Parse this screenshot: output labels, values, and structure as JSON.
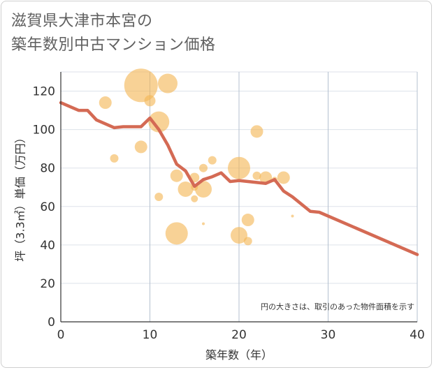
{
  "title_line1": "滋賀県大津市本宮の",
  "title_line2": "築年数別中古マンション価格",
  "chart_data": {
    "type": "scatter",
    "xlabel": "築年数（年）",
    "ylabel": "坪（3.3㎡）単価（万円）",
    "xlim": [
      0,
      40
    ],
    "ylim": [
      0,
      130
    ],
    "xticks": [
      0,
      10,
      20,
      30,
      40
    ],
    "yticks": [
      0,
      20,
      40,
      60,
      80,
      100,
      120
    ],
    "grid": true,
    "note": "円の大きさは、取引のあった物件面積を示す",
    "bubble_color": "#f3b755",
    "line_color": "#d46a54",
    "bubbles": [
      {
        "x": 9,
        "y": 123,
        "size": 24
      },
      {
        "x": 12,
        "y": 124,
        "size": 14
      },
      {
        "x": 5,
        "y": 114,
        "size": 9
      },
      {
        "x": 10,
        "y": 115,
        "size": 8
      },
      {
        "x": 11,
        "y": 104,
        "size": 15
      },
      {
        "x": 22,
        "y": 99,
        "size": 9
      },
      {
        "x": 9,
        "y": 91,
        "size": 9
      },
      {
        "x": 6,
        "y": 85,
        "size": 6
      },
      {
        "x": 17,
        "y": 84,
        "size": 6
      },
      {
        "x": 20,
        "y": 80,
        "size": 16
      },
      {
        "x": 16,
        "y": 80,
        "size": 6
      },
      {
        "x": 13,
        "y": 76,
        "size": 9
      },
      {
        "x": 22,
        "y": 76,
        "size": 6
      },
      {
        "x": 23,
        "y": 75,
        "size": 9
      },
      {
        "x": 25,
        "y": 75,
        "size": 9
      },
      {
        "x": 24,
        "y": 74,
        "size": 4
      },
      {
        "x": 15,
        "y": 75,
        "size": 7
      },
      {
        "x": 14,
        "y": 69,
        "size": 11
      },
      {
        "x": 16,
        "y": 69,
        "size": 12
      },
      {
        "x": 15,
        "y": 70,
        "size": 5
      },
      {
        "x": 11,
        "y": 65,
        "size": 6
      },
      {
        "x": 15,
        "y": 64,
        "size": 5
      },
      {
        "x": 26,
        "y": 55,
        "size": 2
      },
      {
        "x": 21,
        "y": 53,
        "size": 9
      },
      {
        "x": 16,
        "y": 51,
        "size": 2
      },
      {
        "x": 13,
        "y": 46,
        "size": 16
      },
      {
        "x": 20,
        "y": 45,
        "size": 12
      },
      {
        "x": 21,
        "y": 42,
        "size": 6
      }
    ],
    "line": {
      "x": [
        0,
        2,
        3,
        4,
        6,
        7,
        9,
        10,
        11,
        12,
        13,
        14,
        15,
        16,
        17,
        18,
        19,
        20,
        21,
        23,
        24,
        25,
        26,
        28,
        29,
        40
      ],
      "y": [
        114,
        110,
        110,
        105,
        101,
        101.5,
        101.5,
        106,
        100,
        92,
        82,
        78.5,
        70.5,
        74,
        75.5,
        77.5,
        73,
        73.5,
        73,
        72,
        74,
        68,
        65,
        57.5,
        57,
        35
      ]
    }
  }
}
